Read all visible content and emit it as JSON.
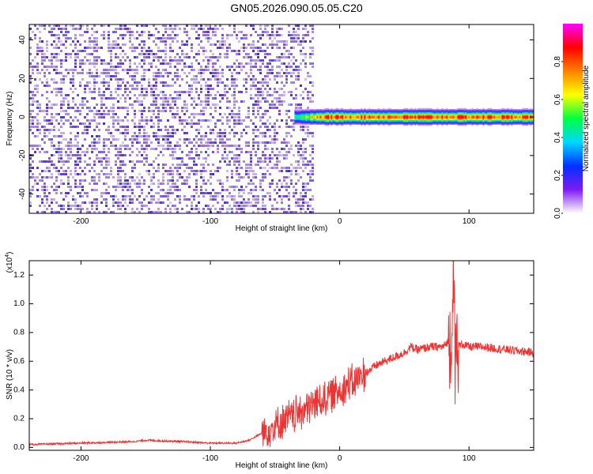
{
  "title": "GN05.2026.090.05.05.C20",
  "colors": {
    "signal": "#ee3333",
    "noise": "#7b1cf0",
    "frame": "#000000"
  },
  "chart_data": [
    {
      "type": "heatmap",
      "xlabel": "Height of straight line (km)",
      "ylabel": "Frequency (Hz)",
      "xlim": [
        -240,
        150
      ],
      "ylim": [
        -50,
        48
      ],
      "xticks": [
        -200,
        -100,
        0,
        100
      ],
      "xtick_labels": [
        "-200",
        "-100",
        "0",
        "100"
      ],
      "yticks": [
        -40,
        -20,
        0,
        20,
        40
      ],
      "ytick_labels": [
        "-40",
        "-20",
        "0",
        "20",
        "40"
      ],
      "colorbar": {
        "label": "Normalized spectral amplitude",
        "range": [
          0,
          1
        ],
        "ticks": [
          0.0,
          0.2,
          0.4,
          0.6,
          0.8
        ],
        "tick_labels": [
          "0.0",
          "0.2",
          "0.4",
          "0.6",
          "0.8"
        ],
        "colormap": [
          "#ffffff",
          "#7b1cf0",
          "#0030ff",
          "#00d8ff",
          "#00ff40",
          "#ffff00",
          "#ff8000",
          "#ff0000",
          "#ff00ff"
        ]
      },
      "noise_region_x": [
        -240,
        -20
      ],
      "noise_amplitude": 0.08,
      "signal_band": {
        "x_start": -35,
        "x_end": 150,
        "freq_center": 0,
        "freq_halfwidth": 3,
        "peak_amplitude": 0.85
      }
    },
    {
      "type": "line",
      "xlabel": "Height of straight line (km)",
      "ylabel": "SNR (10 * v/v)",
      "yscale_note": "(x10",
      "yscale_exp": "4",
      "xlim": [
        -240,
        150
      ],
      "ylim": [
        -0.02,
        1.3
      ],
      "xticks": [
        -200,
        -100,
        0,
        100
      ],
      "xtick_labels": [
        "-200",
        "-100",
        "0",
        "100"
      ],
      "yticks": [
        0.0,
        0.2,
        0.4,
        0.6,
        0.8,
        1.0,
        1.2
      ],
      "ytick_labels": [
        "0.0",
        "0.2",
        "0.4",
        "0.6",
        "0.8",
        "1.0",
        "1.2"
      ],
      "series": [
        {
          "color": "#ee3333",
          "x": [
            -240,
            -200,
            -160,
            -150,
            -120,
            -100,
            -80,
            -70,
            -60,
            -50,
            -40,
            -30,
            -20,
            -10,
            0,
            10,
            20,
            30,
            40,
            50,
            55,
            60,
            70,
            80,
            85,
            88,
            90,
            95,
            100,
            110,
            120,
            130,
            140,
            150
          ],
          "y": [
            0.02,
            0.03,
            0.04,
            0.05,
            0.04,
            0.03,
            0.03,
            0.05,
            0.1,
            0.15,
            0.2,
            0.25,
            0.3,
            0.35,
            0.4,
            0.45,
            0.52,
            0.58,
            0.62,
            0.66,
            0.7,
            0.68,
            0.7,
            0.7,
            0.75,
            0.9,
            0.7,
            0.72,
            0.7,
            0.7,
            0.69,
            0.68,
            0.67,
            0.66
          ]
        }
      ]
    }
  ]
}
